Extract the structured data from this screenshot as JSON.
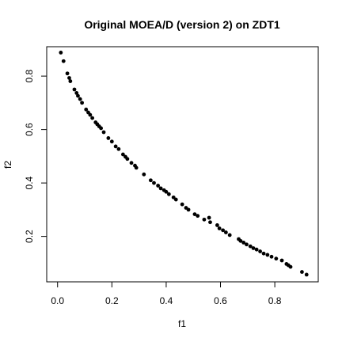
{
  "chart_data": {
    "type": "scatter",
    "title": "Original MOEA/D (version 2) on ZDT1",
    "xlabel": "f1",
    "ylabel": "f2",
    "xlim": [
      -0.04,
      0.96
    ],
    "ylim": [
      0.03,
      0.91
    ],
    "xticks": [
      "0.0",
      "0.2",
      "0.4",
      "0.6",
      "0.8"
    ],
    "yticks": [
      "0.2",
      "0.4",
      "0.6",
      "0.8"
    ],
    "grid": false,
    "marker_color": "#000000",
    "points": [
      [
        0.012,
        0.888
      ],
      [
        0.022,
        0.856
      ],
      [
        0.036,
        0.81
      ],
      [
        0.043,
        0.793
      ],
      [
        0.047,
        0.781
      ],
      [
        0.062,
        0.75
      ],
      [
        0.07,
        0.737
      ],
      [
        0.075,
        0.726
      ],
      [
        0.083,
        0.714
      ],
      [
        0.09,
        0.7
      ],
      [
        0.105,
        0.675
      ],
      [
        0.113,
        0.664
      ],
      [
        0.12,
        0.655
      ],
      [
        0.128,
        0.643
      ],
      [
        0.14,
        0.627
      ],
      [
        0.146,
        0.62
      ],
      [
        0.153,
        0.612
      ],
      [
        0.16,
        0.605
      ],
      [
        0.17,
        0.59
      ],
      [
        0.187,
        0.568
      ],
      [
        0.2,
        0.555
      ],
      [
        0.214,
        0.537
      ],
      [
        0.225,
        0.527
      ],
      [
        0.241,
        0.507
      ],
      [
        0.25,
        0.498
      ],
      [
        0.257,
        0.49
      ],
      [
        0.272,
        0.475
      ],
      [
        0.285,
        0.465
      ],
      [
        0.29,
        0.457
      ],
      [
        0.318,
        0.432
      ],
      [
        0.343,
        0.41
      ],
      [
        0.355,
        0.4
      ],
      [
        0.37,
        0.39
      ],
      [
        0.38,
        0.38
      ],
      [
        0.392,
        0.373
      ],
      [
        0.4,
        0.367
      ],
      [
        0.41,
        0.358
      ],
      [
        0.427,
        0.346
      ],
      [
        0.436,
        0.338
      ],
      [
        0.459,
        0.32
      ],
      [
        0.473,
        0.307
      ],
      [
        0.482,
        0.3
      ],
      [
        0.505,
        0.283
      ],
      [
        0.516,
        0.277
      ],
      [
        0.54,
        0.263
      ],
      [
        0.558,
        0.27
      ],
      [
        0.562,
        0.253
      ],
      [
        0.588,
        0.242
      ],
      [
        0.596,
        0.23
      ],
      [
        0.609,
        0.223
      ],
      [
        0.62,
        0.215
      ],
      [
        0.634,
        0.205
      ],
      [
        0.667,
        0.19
      ],
      [
        0.674,
        0.183
      ],
      [
        0.685,
        0.177
      ],
      [
        0.696,
        0.17
      ],
      [
        0.71,
        0.163
      ],
      [
        0.721,
        0.156
      ],
      [
        0.733,
        0.151
      ],
      [
        0.746,
        0.144
      ],
      [
        0.759,
        0.136
      ],
      [
        0.773,
        0.131
      ],
      [
        0.788,
        0.124
      ],
      [
        0.805,
        0.117
      ],
      [
        0.826,
        0.11
      ],
      [
        0.843,
        0.097
      ],
      [
        0.85,
        0.092
      ],
      [
        0.858,
        0.086
      ],
      [
        0.9,
        0.067
      ],
      [
        0.917,
        0.057
      ]
    ]
  }
}
